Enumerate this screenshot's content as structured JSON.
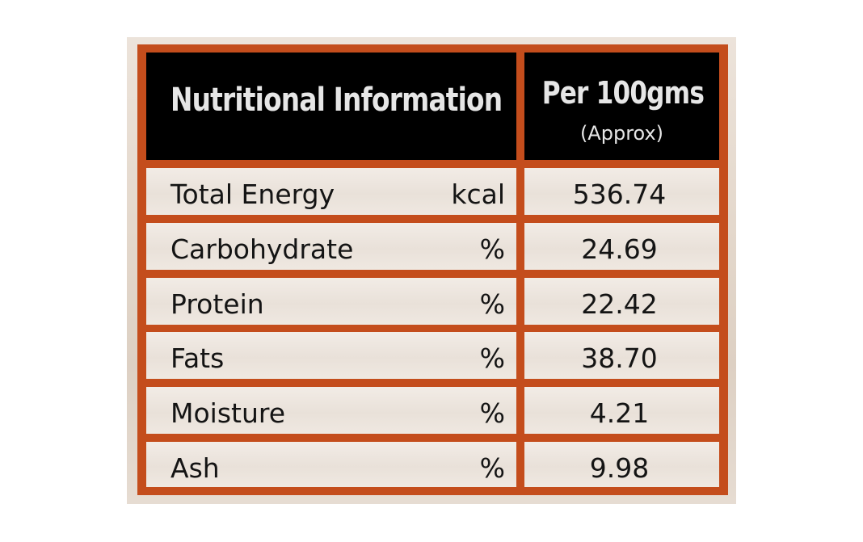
{
  "table": {
    "header": {
      "title": "Nutritional Information",
      "per": "Per 100gms",
      "approx": "(Approx)"
    },
    "rows": [
      {
        "name": "Total Energy",
        "unit": "kcal",
        "value": "536.74"
      },
      {
        "name": "Carbohydrate",
        "unit": "%",
        "value": "24.69"
      },
      {
        "name": "Protein",
        "unit": "%",
        "value": "22.42"
      },
      {
        "name": "Fats",
        "unit": "%",
        "value": "38.70"
      },
      {
        "name": "Moisture",
        "unit": "%",
        "value": "4.21"
      },
      {
        "name": "Ash",
        "unit": "%",
        "value": "9.98"
      }
    ]
  },
  "colors": {
    "border": "#c44d1c",
    "header_bg": "#000000",
    "header_text": "#e6e6e6",
    "body_text": "#141414"
  }
}
